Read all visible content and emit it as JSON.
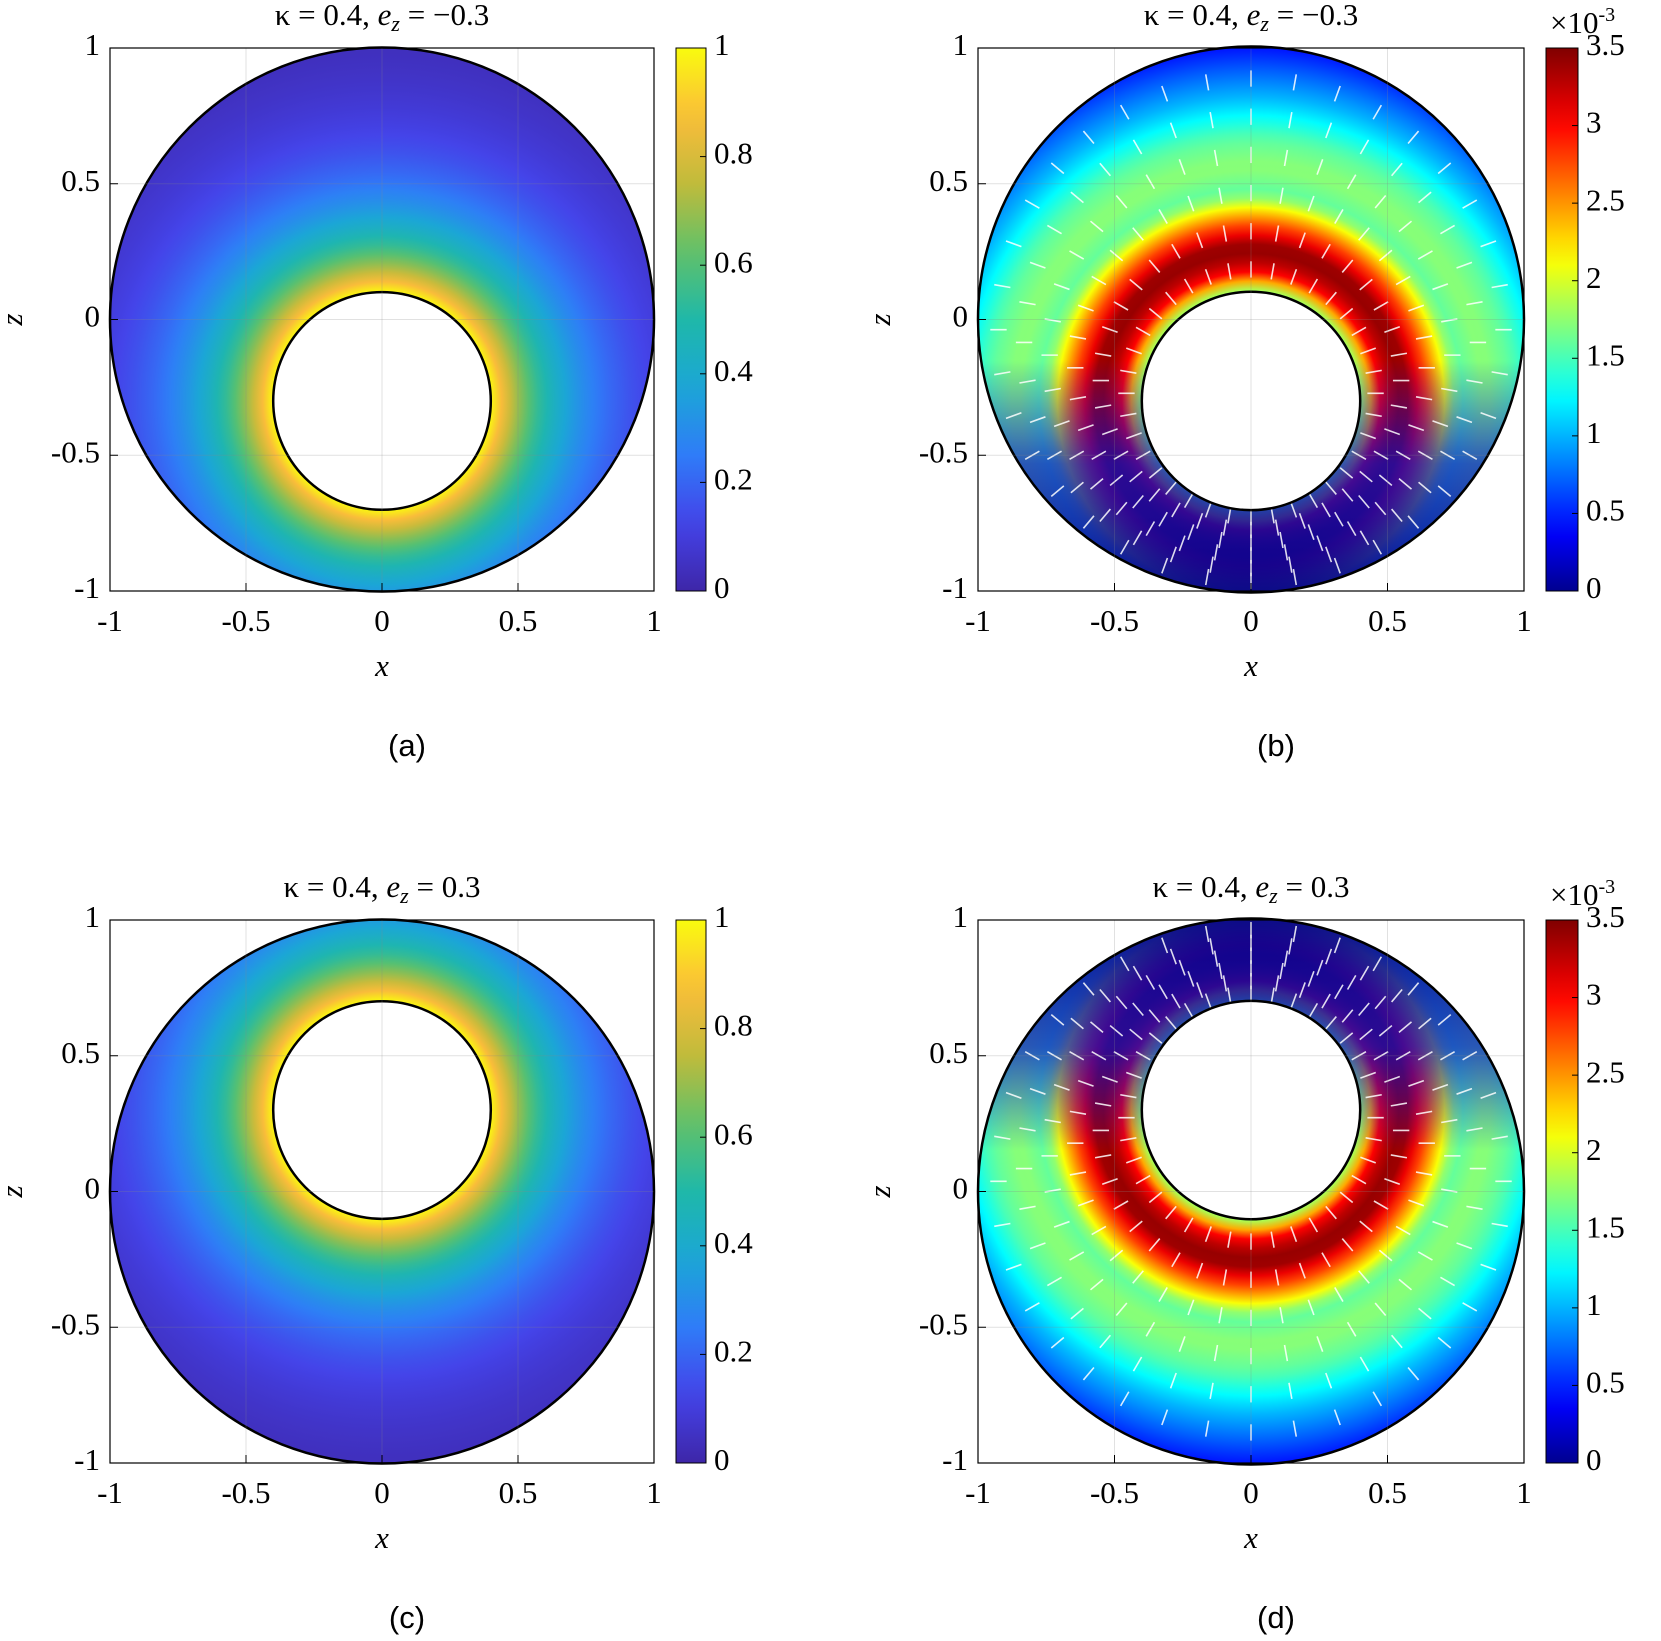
{
  "chart_data": [
    {
      "type": "contour",
      "colormap": "parula",
      "grid": true,
      "title": {
        "prefix": "κ = 0.4, ",
        "symbol": "e",
        "subscript": "z",
        "suffix": " = −0.3"
      },
      "caption": "(a)",
      "xlabel": "x",
      "ylabel": "z",
      "xlim": [
        -1,
        1
      ],
      "ylim": [
        -1,
        1
      ],
      "xticks": [
        -1,
        -0.5,
        0,
        0.5,
        1
      ],
      "yticks": [
        -1,
        -0.5,
        0,
        0.5,
        1
      ],
      "outer_circle": {
        "cx": 0,
        "cz": 0,
        "r": 1
      },
      "inner_circle": {
        "cx": 0,
        "cz": -0.3,
        "r": 0.4
      },
      "clim": [
        0,
        1
      ],
      "cticks": [
        0,
        0.2,
        0.4,
        0.6,
        0.8,
        1
      ]
    },
    {
      "type": "contour",
      "colormap": "jet",
      "grid": true,
      "arrows": true,
      "title": {
        "prefix": "κ = 0.4, ",
        "symbol": "e",
        "subscript": "z",
        "suffix": " = −0.3"
      },
      "caption": "(b)",
      "xlabel": "x",
      "ylabel": "z",
      "xlim": [
        -1,
        1
      ],
      "ylim": [
        -1,
        1
      ],
      "xticks": [
        -1,
        -0.5,
        0,
        0.5,
        1
      ],
      "yticks": [
        -1,
        -0.5,
        0,
        0.5,
        1
      ],
      "outer_circle": {
        "cx": 0,
        "cz": 0,
        "r": 1
      },
      "inner_circle": {
        "cx": 0,
        "cz": -0.3,
        "r": 0.4
      },
      "clim": [
        0,
        0.0035
      ],
      "cscale_base": "×10",
      "cscale_exponent": "-3",
      "cticks": [
        0,
        {
          "value": 0.0005,
          "label": "0.5"
        },
        {
          "value": 0.001,
          "label": "1"
        },
        {
          "value": 0.0015,
          "label": "1.5"
        },
        {
          "value": 0.002,
          "label": "2"
        },
        {
          "value": 0.0025,
          "label": "2.5"
        },
        {
          "value": 0.003,
          "label": "3"
        },
        {
          "value": 0.0035,
          "label": "3.5"
        }
      ]
    },
    {
      "type": "contour",
      "colormap": "parula",
      "grid": true,
      "title": {
        "prefix": "κ = 0.4, ",
        "symbol": "e",
        "subscript": "z",
        "suffix": " = 0.3"
      },
      "caption": "(c)",
      "xlabel": "x",
      "ylabel": "z",
      "xlim": [
        -1,
        1
      ],
      "ylim": [
        -1,
        1
      ],
      "xticks": [
        -1,
        -0.5,
        0,
        0.5,
        1
      ],
      "yticks": [
        -1,
        -0.5,
        0,
        0.5,
        1
      ],
      "outer_circle": {
        "cx": 0,
        "cz": 0,
        "r": 1
      },
      "inner_circle": {
        "cx": 0,
        "cz": 0.3,
        "r": 0.4
      },
      "clim": [
        0,
        1
      ],
      "cticks": [
        0,
        0.2,
        0.4,
        0.6,
        0.8,
        1
      ]
    },
    {
      "type": "contour",
      "colormap": "jet",
      "grid": true,
      "arrows": true,
      "title": {
        "prefix": "κ = 0.4, ",
        "symbol": "e",
        "subscript": "z",
        "suffix": " = 0.3"
      },
      "caption": "(d)",
      "xlabel": "x",
      "ylabel": "z",
      "xlim": [
        -1,
        1
      ],
      "ylim": [
        -1,
        1
      ],
      "xticks": [
        -1,
        -0.5,
        0,
        0.5,
        1
      ],
      "yticks": [
        -1,
        -0.5,
        0,
        0.5,
        1
      ],
      "outer_circle": {
        "cx": 0,
        "cz": 0,
        "r": 1
      },
      "inner_circle": {
        "cx": 0,
        "cz": 0.3,
        "r": 0.4
      },
      "clim": [
        0,
        0.0035
      ],
      "cscale_base": "×10",
      "cscale_exponent": "-3",
      "cticks": [
        0,
        {
          "value": 0.0005,
          "label": "0.5"
        },
        {
          "value": 0.001,
          "label": "1"
        },
        {
          "value": 0.0015,
          "label": "1.5"
        },
        {
          "value": 0.002,
          "label": "2"
        },
        {
          "value": 0.0025,
          "label": "2.5"
        },
        {
          "value": 0.003,
          "label": "3"
        },
        {
          "value": 0.0035,
          "label": "3.5"
        }
      ]
    }
  ]
}
